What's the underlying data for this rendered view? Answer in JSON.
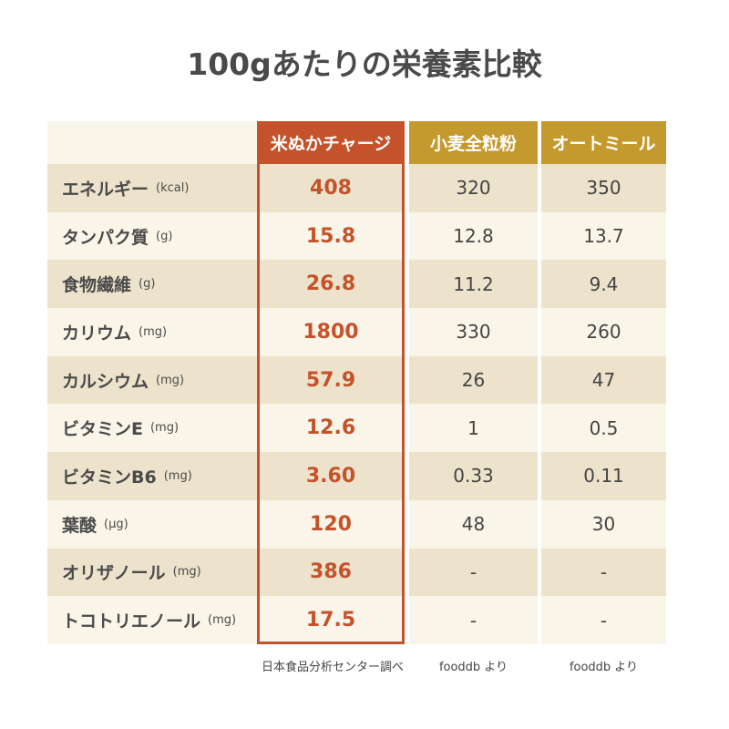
{
  "title": "100gあたりの栄養素比較",
  "columns": [
    {
      "name": "米ぬかチャージ",
      "color": "#c4532b",
      "source": "日本食品分析センター調べ"
    },
    {
      "name": "小麦全粒粉",
      "color": "#c49a2e",
      "source": "fooddb より"
    },
    {
      "name": "オートミール",
      "color": "#c49a2e",
      "source": "fooddb より"
    }
  ],
  "rows": [
    {
      "label": "エネルギー",
      "unit": "(kcal)",
      "values": [
        "408",
        "320",
        "350"
      ]
    },
    {
      "label": "タンパク質",
      "unit": "(g)",
      "values": [
        "15.8",
        "12.8",
        "13.7"
      ]
    },
    {
      "label": "食物繊維",
      "unit": "(g)",
      "values": [
        "26.8",
        "11.2",
        "9.4"
      ]
    },
    {
      "label": "カリウム",
      "unit": "(mg)",
      "values": [
        "1800",
        "330",
        "260"
      ]
    },
    {
      "label": "カルシウム",
      "unit": "(mg)",
      "values": [
        "57.9",
        "26",
        "47"
      ]
    },
    {
      "label": "ビタミンE",
      "unit": "(mg)",
      "values": [
        "12.6",
        "1",
        "0.5"
      ]
    },
    {
      "label": "ビタミンB6",
      "unit": "(mg)",
      "values": [
        "3.60",
        "0.33",
        "0.11"
      ]
    },
    {
      "label": "葉酸",
      "unit": "(μg)",
      "values": [
        "120",
        "48",
        "30"
      ]
    },
    {
      "label": "オリザノール",
      "unit": "(mg)",
      "values": [
        "386",
        "-",
        "-"
      ]
    },
    {
      "label": "トコトリエノール",
      "unit": "(mg)",
      "values": [
        "17.5",
        "-",
        "-"
      ]
    }
  ]
}
